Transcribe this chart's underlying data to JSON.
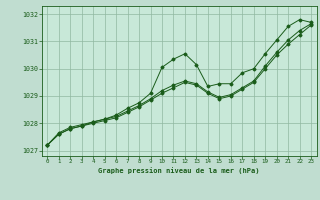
{
  "background_color": "#c0ddd0",
  "plot_bg_color": "#c8e8d8",
  "grid_color": "#90b8a0",
  "line_color": "#1a5c1a",
  "title": "Graphe pression niveau de la mer (hPa)",
  "xlim": [
    -0.5,
    23.5
  ],
  "ylim": [
    1026.8,
    1032.3
  ],
  "xtick_labels": [
    "0",
    "1",
    "2",
    "3",
    "4",
    "5",
    "6",
    "7",
    "8",
    "9",
    "10",
    "11",
    "12",
    "13",
    "14",
    "15",
    "16",
    "17",
    "18",
    "19",
    "20",
    "21",
    "22",
    "23"
  ],
  "yticks": [
    1027,
    1028,
    1029,
    1030,
    1031,
    1032
  ],
  "series1": [
    1027.2,
    1027.6,
    1027.8,
    1027.9,
    1028.05,
    1028.15,
    1028.3,
    1028.55,
    1028.75,
    1029.1,
    1030.05,
    1030.35,
    1030.55,
    1030.15,
    1029.35,
    1029.45,
    1029.45,
    1029.85,
    1030.0,
    1030.55,
    1031.05,
    1031.55,
    1031.8,
    1031.7
  ],
  "series2": [
    1027.2,
    1027.65,
    1027.85,
    1027.95,
    1028.05,
    1028.15,
    1028.25,
    1028.45,
    1028.65,
    1028.9,
    1029.2,
    1029.4,
    1029.55,
    1029.45,
    1029.15,
    1028.95,
    1029.05,
    1029.3,
    1029.55,
    1030.1,
    1030.6,
    1031.05,
    1031.4,
    1031.65
  ],
  "series3": [
    1027.2,
    1027.6,
    1027.8,
    1027.9,
    1028.0,
    1028.1,
    1028.2,
    1028.4,
    1028.6,
    1028.85,
    1029.1,
    1029.3,
    1029.5,
    1029.4,
    1029.1,
    1028.9,
    1029.0,
    1029.25,
    1029.5,
    1030.0,
    1030.5,
    1030.9,
    1031.25,
    1031.6
  ]
}
